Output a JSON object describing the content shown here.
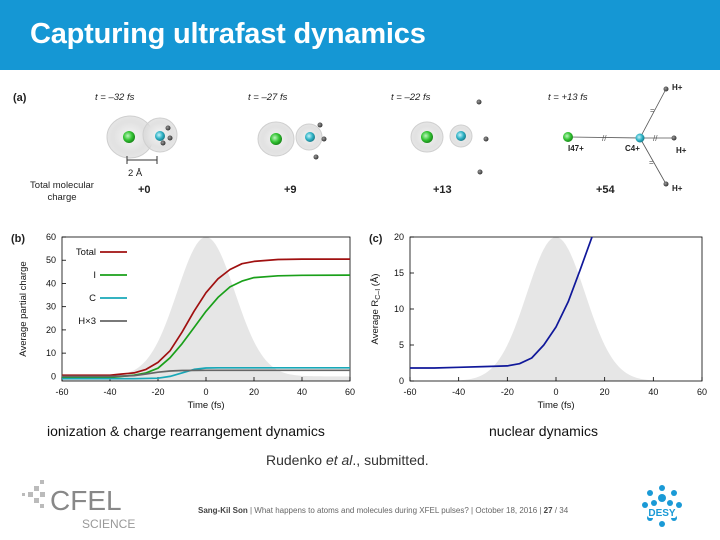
{
  "slide": {
    "title": "Capturing ultrafast dynamics",
    "citation_author": "Rudenko ",
    "citation_etal": "et al",
    "citation_rest": "., submitted.",
    "colors": {
      "title_bar": "#1597d4",
      "total": "#a01010",
      "iodine": "#1aa01a",
      "carbon": "#18a8b8",
      "hydrogen": "#666666",
      "distance": "#10189a",
      "pulse": "#e6e6e6"
    }
  },
  "panel_a": {
    "label": "(a)",
    "frames": [
      {
        "time": "t = –32 fs",
        "charge": "+0"
      },
      {
        "time": "t = –27 fs",
        "charge": "+9"
      },
      {
        "time": "t = –22 fs",
        "charge": "+13"
      },
      {
        "time": "t = +13 fs",
        "charge": "+54"
      }
    ],
    "scale_bar": "2 Å",
    "total_charge_label_1": "Total molecular",
    "total_charge_label_2": "charge",
    "ion_labels": {
      "iodine": "I47+",
      "carbon": "C4+",
      "hydrogen": "H+"
    }
  },
  "panel_b": {
    "label": "(b)",
    "caption": "ionization & charge rearrangement dynamics",
    "legend": [
      "Total",
      "I",
      "C",
      "H×3"
    ]
  },
  "panel_c": {
    "label": "(c)",
    "caption": "nuclear dynamics"
  },
  "chart_data": [
    {
      "type": "line",
      "xlabel": "Time (fs)",
      "ylabel": "Average partial charge",
      "xlim": [
        -60,
        60
      ],
      "ylim": [
        -2,
        60
      ],
      "xticks": [
        -60,
        -40,
        -20,
        0,
        20,
        40,
        60
      ],
      "yticks": [
        0,
        10,
        20,
        30,
        40,
        50,
        60
      ],
      "pulse_profile": {
        "center": 0,
        "sigma": 12,
        "peak": 60
      },
      "series": [
        {
          "name": "Total",
          "x": [
            -60,
            -40,
            -35,
            -30,
            -25,
            -20,
            -15,
            -10,
            -5,
            0,
            5,
            10,
            15,
            20,
            30,
            40,
            60
          ],
          "y": [
            0.5,
            0.5,
            1,
            1.5,
            3,
            6,
            11,
            19,
            28,
            36,
            42,
            46,
            48.5,
            49.5,
            50.3,
            50.5,
            50.5
          ]
        },
        {
          "name": "I",
          "x": [
            -60,
            -40,
            -35,
            -30,
            -25,
            -20,
            -15,
            -10,
            -5,
            0,
            5,
            10,
            15,
            20,
            30,
            40,
            60
          ],
          "y": [
            -0.5,
            -0.5,
            0,
            0.5,
            1.5,
            3.5,
            8,
            14,
            21,
            28,
            34,
            38.5,
            41,
            42.5,
            43.3,
            43.5,
            43.6
          ]
        },
        {
          "name": "C",
          "x": [
            -60,
            -40,
            -30,
            -20,
            -15,
            -10,
            -5,
            0,
            5,
            10,
            20,
            40,
            60
          ],
          "y": [
            -1,
            -1,
            -1,
            -0.8,
            0,
            1.5,
            3,
            3.6,
            3.7,
            3.7,
            3.7,
            3.7,
            3.7
          ]
        },
        {
          "name": "H×3",
          "x": [
            -60,
            -40,
            -30,
            -25,
            -20,
            -15,
            -10,
            0,
            20,
            40,
            60
          ],
          "y": [
            0,
            0,
            0.3,
            1,
            1.8,
            2.3,
            2.5,
            2.6,
            2.6,
            2.6,
            2.6
          ]
        }
      ]
    },
    {
      "type": "line",
      "xlabel": "Time (fs)",
      "ylabel": "Average R",
      "ylabel_sub": "C–I",
      "ylabel_unit": " (Å)",
      "xlim": [
        -60,
        60
      ],
      "ylim": [
        0,
        20
      ],
      "xticks": [
        -60,
        -40,
        -20,
        0,
        20,
        40,
        60
      ],
      "yticks": [
        0,
        5,
        10,
        15,
        20
      ],
      "pulse_profile": {
        "center": 0,
        "sigma": 12,
        "peak": 20
      },
      "series": [
        {
          "name": "",
          "x": [
            -60,
            -50,
            -40,
            -30,
            -20,
            -15,
            -10,
            -5,
            0,
            5,
            10,
            15
          ],
          "y": [
            1.8,
            1.8,
            1.9,
            2.0,
            2.1,
            2.4,
            3.2,
            5,
            7.5,
            11,
            15.5,
            20.2
          ]
        }
      ]
    }
  ],
  "logos": {
    "cfel": "CFEL",
    "cfel_sub": "SCIENCE",
    "desy": "DESY"
  },
  "footer": {
    "speaker": "Sang-Kil Son",
    "talk": "  |  What happens to atoms and molecules during XFEL pulses?  |  October 18, 2016  |  ",
    "page": "27",
    "total": " / 34"
  }
}
